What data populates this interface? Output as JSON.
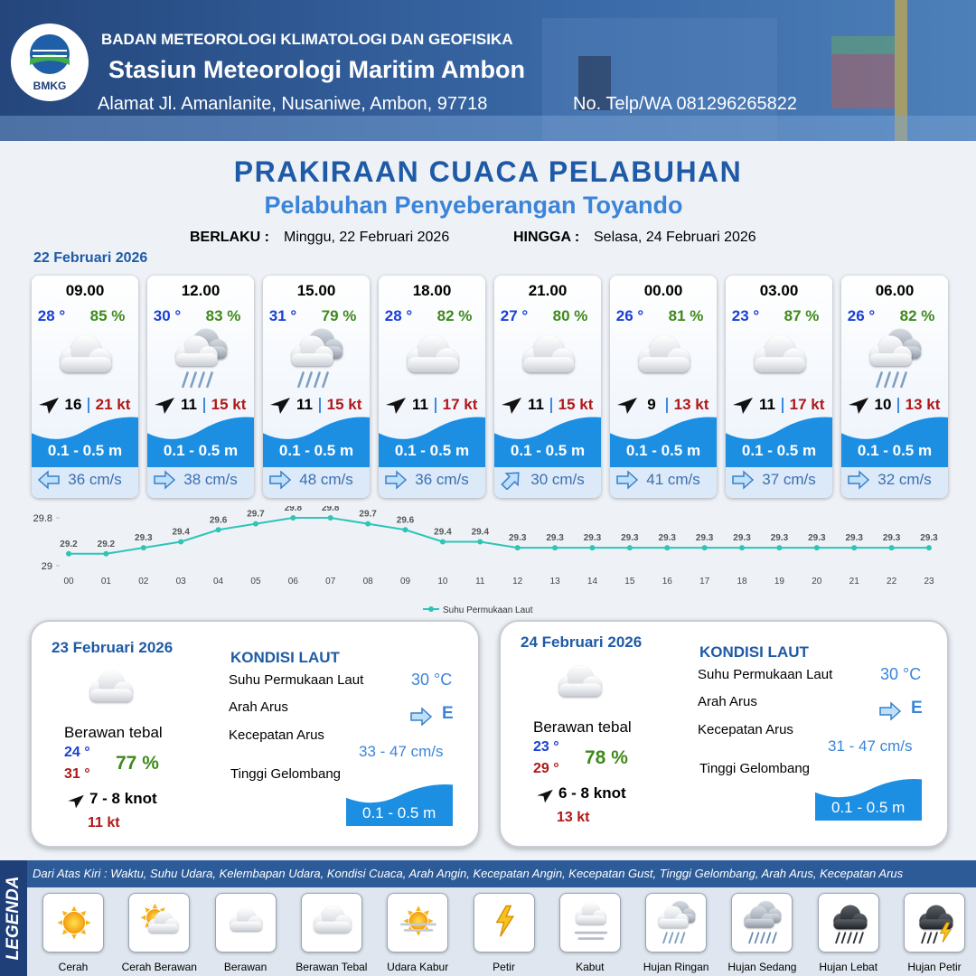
{
  "header": {
    "logo": "BMKG",
    "org": "BADAN METEOROLOGI KLIMATOLOGI DAN GEOFISIKA",
    "station": "Stasiun Meteorologi Maritim Ambon",
    "address": "Alamat Jl. Amanlanite, Nusaniwe, Ambon, 97718",
    "phone": "No. Telp/WA  081296265822"
  },
  "title": "PRAKIRAAN CUACA PELABUHAN",
  "subtitle": "Pelabuhan Penyeberangan Toyando",
  "validity": {
    "from_label": "BERLAKU :",
    "from": "Minggu, 22 Februari 2026",
    "to_label": "HINGGA :",
    "to": "Selasa, 24 Februari 2026"
  },
  "day1": {
    "date": "22 Februari 2026",
    "cards": [
      {
        "time": "09.00",
        "temp": "28 °",
        "humidity": "85 %",
        "condition": "Berawan Tebal",
        "wind": "16",
        "gust": "21 kt",
        "wave": "0.1 - 0.5 m",
        "current_bearing": 270,
        "current": "36 cm/s"
      },
      {
        "time": "12.00",
        "temp": "30 °",
        "humidity": "83 %",
        "condition": "Hujan Ringan",
        "wind": "11",
        "gust": "15 kt",
        "wave": "0.1 - 0.5 m",
        "current_bearing": 90,
        "current": "38 cm/s"
      },
      {
        "time": "15.00",
        "temp": "31 °",
        "humidity": "79 %",
        "condition": "Hujan Ringan",
        "wind": "11",
        "gust": "15 kt",
        "wave": "0.1 - 0.5 m",
        "current_bearing": 90,
        "current": "48 cm/s"
      },
      {
        "time": "18.00",
        "temp": "28 °",
        "humidity": "82 %",
        "condition": "Berawan Tebal",
        "wind": "11",
        "gust": "17 kt",
        "wave": "0.1 - 0.5 m",
        "current_bearing": 90,
        "current": "36 cm/s"
      },
      {
        "time": "21.00",
        "temp": "27 °",
        "humidity": "80 %",
        "condition": "Berawan Tebal",
        "wind": "11",
        "gust": "15 kt",
        "wave": "0.1 - 0.5 m",
        "current_bearing": 45,
        "current": "30 cm/s"
      },
      {
        "time": "00.00",
        "temp": "26 °",
        "humidity": "81 %",
        "condition": "Berawan Tebal",
        "wind": "9",
        "gust": "13 kt",
        "wave": "0.1 - 0.5 m",
        "current_bearing": 90,
        "current": "41 cm/s"
      },
      {
        "time": "03.00",
        "temp": "23 °",
        "humidity": "87 %",
        "condition": "Berawan Tebal",
        "wind": "11",
        "gust": "17 kt",
        "wave": "0.1 - 0.5 m",
        "current_bearing": 90,
        "current": "37 cm/s"
      },
      {
        "time": "06.00",
        "temp": "26 °",
        "humidity": "82 %",
        "condition": "Hujan Ringan",
        "wind": "10",
        "gust": "13 kt",
        "wave": "0.1 - 0.5 m",
        "current_bearing": 90,
        "current": "32 cm/s"
      }
    ]
  },
  "sst_chart": {
    "type": "line",
    "x": [
      "00",
      "01",
      "02",
      "03",
      "04",
      "05",
      "06",
      "07",
      "08",
      "09",
      "10",
      "11",
      "12",
      "13",
      "14",
      "15",
      "16",
      "17",
      "18",
      "19",
      "20",
      "21",
      "22",
      "23"
    ],
    "series": [
      {
        "name": "Suhu Permukaan Laut",
        "color": "#2ec4b6",
        "values": [
          29.2,
          29.2,
          29.3,
          29.4,
          29.6,
          29.7,
          29.8,
          29.8,
          29.7,
          29.6,
          29.4,
          29.4,
          29.3,
          29.3,
          29.3,
          29.3,
          29.3,
          29.3,
          29.3,
          29.3,
          29.3,
          29.3,
          29.3,
          29.3
        ]
      }
    ],
    "ylim": [
      29,
      29.8
    ],
    "yticks": [
      29,
      29.8
    ]
  },
  "summaries": [
    {
      "date": "23 Februari 2026",
      "condition": "Berawan tebal",
      "tmin": "24 °",
      "tmax": "31 °",
      "humidity": "77 %",
      "wind": "7  - 8 knot",
      "gust": "11 kt",
      "heading": "KONDISI LAUT",
      "sst_label": "Suhu Permukaan Laut",
      "sst": "30 °C",
      "dir_label": "Arah Arus",
      "dir": "E",
      "speed_label": "Kecepatan Arus",
      "speed": "33 - 47 cm/s",
      "wave_label": "Tinggi Gelombang",
      "wave": "0.1 - 0.5 m"
    },
    {
      "date": "24 Februari 2026",
      "condition": "Berawan tebal",
      "tmin": "23 °",
      "tmax": "29 °",
      "humidity": "78 %",
      "wind": "6  - 8 knot",
      "gust": "13 kt",
      "heading": "KONDISI LAUT",
      "sst_label": "Suhu Permukaan Laut",
      "sst": "30 °C",
      "dir_label": "Arah Arus",
      "dir": "E",
      "speed_label": "Kecepatan Arus",
      "speed": "31 - 47 cm/s",
      "wave_label": "Tinggi Gelombang",
      "wave": "0.1 - 0.5 m"
    }
  ],
  "legend": {
    "title": "LEGENDA",
    "description": "Dari Atas Kiri : Waktu, Suhu Udara, Kelembapan Udara, Kondisi Cuaca, Arah Angin, Kecepatan Angin, Kecepatan Gust, Tinggi Gelombang, Arah Arus, Kecepatan Arus",
    "items": [
      "Cerah",
      "Cerah Berawan",
      "Berawan",
      "Berawan Tebal",
      "Udara Kabur",
      "Petir",
      "Kabut",
      "Hujan Ringan",
      "Hujan Sedang",
      "Hujan Lebat",
      "Hujan Petir"
    ]
  }
}
